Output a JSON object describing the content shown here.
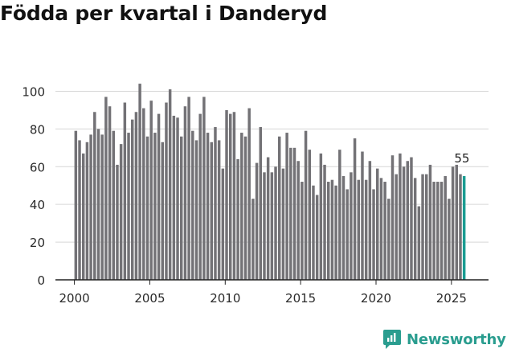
{
  "title": "Födda per kvartal i Danderyd",
  "brand": {
    "name": "Newsworthy",
    "color": "#2a9d8f"
  },
  "colors": {
    "bar": "#737276",
    "highlight": "#1a9c92",
    "grid": "#d6d6d6",
    "axis": "#222222"
  },
  "chart_data": {
    "type": "bar",
    "title": "Födda per kvartal i Danderyd",
    "xlabel": "",
    "ylabel": "",
    "ylim": [
      0,
      110
    ],
    "yticks": [
      0,
      20,
      40,
      60,
      80,
      100
    ],
    "xticks": [
      {
        "label": "2000",
        "year": 2000
      },
      {
        "label": "2005",
        "year": 2005
      },
      {
        "label": "2010",
        "year": 2010
      },
      {
        "label": "2015",
        "year": 2015
      },
      {
        "label": "2020",
        "year": 2020
      },
      {
        "label": "2025",
        "year": 2025
      }
    ],
    "start_year": 2000,
    "periods_per_year": 4,
    "highlight_last": true,
    "last_value_label": "55",
    "values": [
      79,
      74,
      67,
      73,
      77,
      89,
      80,
      77,
      97,
      92,
      79,
      61,
      72,
      94,
      78,
      85,
      89,
      104,
      91,
      76,
      95,
      78,
      88,
      73,
      94,
      101,
      87,
      86,
      76,
      92,
      97,
      79,
      74,
      88,
      97,
      78,
      73,
      81,
      74,
      59,
      90,
      88,
      89,
      64,
      78,
      76,
      91,
      43,
      62,
      81,
      57,
      65,
      57,
      60,
      76,
      59,
      78,
      70,
      70,
      63,
      52,
      79,
      69,
      50,
      45,
      67,
      61,
      52,
      53,
      50,
      69,
      55,
      48,
      57,
      75,
      53,
      68,
      53,
      63,
      48,
      59,
      54,
      52,
      43,
      66,
      56,
      67,
      60,
      63,
      65,
      54,
      39,
      56,
      56,
      61,
      52,
      52,
      52,
      55,
      43,
      60,
      61,
      56,
      55
    ]
  }
}
